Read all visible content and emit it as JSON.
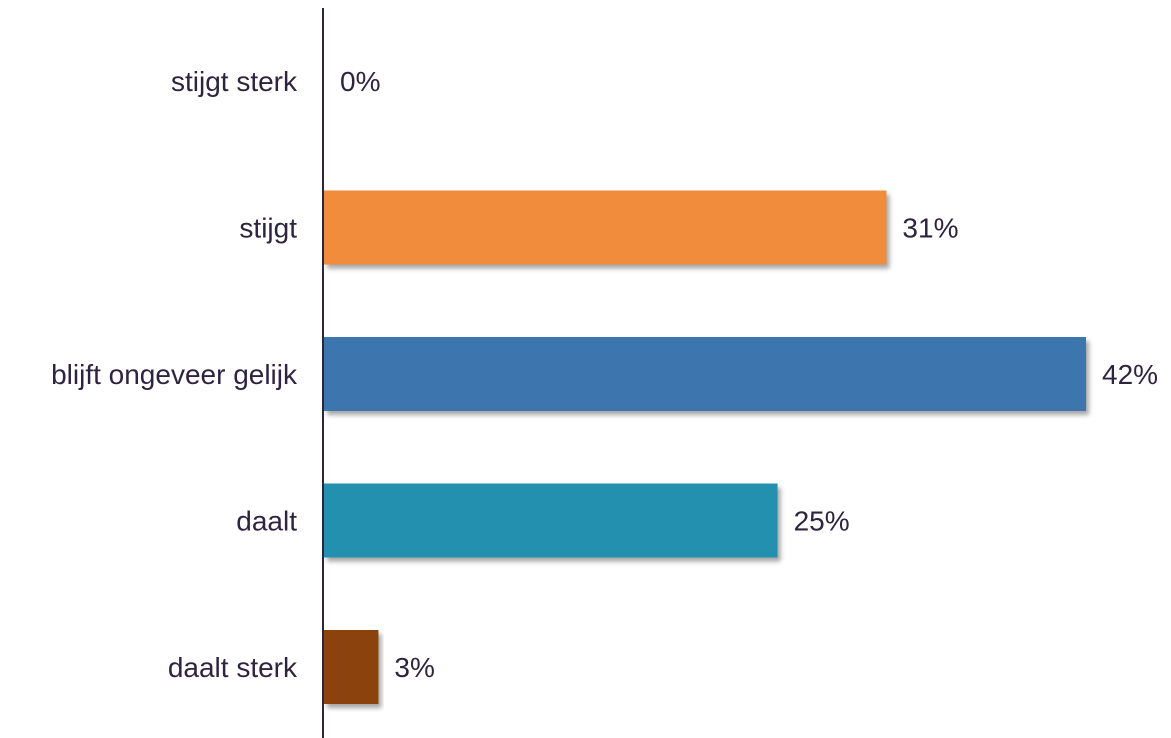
{
  "chart_data": {
    "type": "bar",
    "orientation": "horizontal",
    "title": "",
    "xlabel": "",
    "ylabel": "",
    "categories": [
      "stijgt sterk",
      "stijgt",
      "blijft ongeveer gelijk",
      "daalt",
      "daalt sterk"
    ],
    "values": [
      0,
      31,
      42,
      25,
      3
    ],
    "value_labels": [
      "0%",
      "31%",
      "42%",
      "25%",
      "3%"
    ],
    "unit": "%",
    "colors": [
      "#F08C3A",
      "#F08C3A",
      "#3D76AE",
      "#2190AE",
      "#8B4208"
    ],
    "axis_color": "#2E2440",
    "xlim": [
      0,
      42
    ],
    "grid": false,
    "legend": "none"
  }
}
